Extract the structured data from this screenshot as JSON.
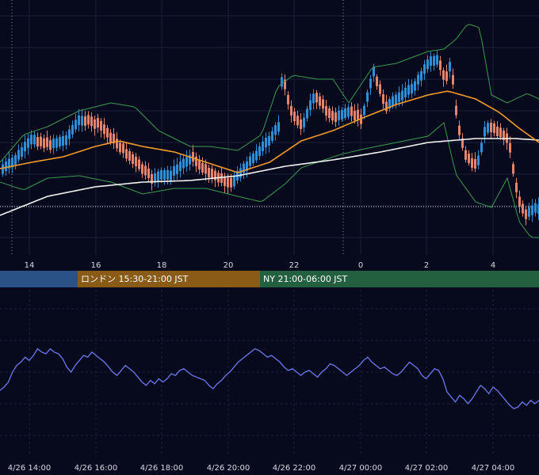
{
  "colors": {
    "background": "#070a1c",
    "grid": "#1a2036",
    "up_candle": "#2f8fd6",
    "down_candle": "#e8846b",
    "bollinger": "#3c9a52",
    "ma_short": "#f39a2b",
    "ma_long": "#f2f2f2",
    "oscillator": "#6b78f0",
    "axis_text": "#d7d9e3",
    "tokyo_session": "#2b5286",
    "london_session": "#8a5a17",
    "ny_session": "#22603f"
  },
  "sessions": [
    {
      "label": "",
      "color": "#2b5286"
    },
    {
      "label": "ロンドン 15:30-21:00 JST",
      "color": "#8a5a17"
    },
    {
      "label": "NY 21:00-06:00 JST",
      "color": "#22603f"
    }
  ],
  "chart_data": [
    {
      "type": "candlestick",
      "title": "",
      "x_ticks": [
        "14",
        "16",
        "18",
        "20",
        "22",
        "0",
        "2",
        "4"
      ],
      "overlays": [
        "bollinger-bands",
        "moving-average-short",
        "moving-average-long"
      ],
      "grid": true,
      "legend": "none"
    },
    {
      "type": "line",
      "title": "",
      "x_ticks": [
        "4/26 14:00",
        "4/26 16:00",
        "4/26 18:00",
        "4/26 20:00",
        "4/26 22:00",
        "4/27 00:00",
        "4/27 02:00",
        "4/27 04:00"
      ],
      "series": [
        {
          "name": "",
          "values": [
            49,
            51,
            54,
            60,
            64,
            66,
            69,
            67,
            70,
            74,
            72,
            71,
            74,
            72,
            71,
            68,
            63,
            60,
            64,
            67,
            70,
            69,
            72,
            70,
            68,
            66,
            63,
            60,
            58,
            61,
            64,
            62,
            60,
            57,
            54,
            52,
            55,
            53,
            56,
            54,
            56,
            59,
            58,
            61,
            62,
            60,
            58,
            57,
            56,
            55,
            52,
            50,
            53,
            55,
            58,
            60,
            63,
            66,
            68,
            70,
            72,
            74,
            73,
            71,
            69,
            70,
            68,
            66,
            63,
            61,
            62,
            60,
            58,
            60,
            61,
            59,
            57,
            60,
            62,
            65,
            64,
            62,
            60,
            58,
            60,
            62,
            64,
            67,
            69,
            66,
            64,
            62,
            63,
            61,
            59,
            58,
            60,
            63,
            66,
            64,
            62,
            58,
            56,
            59,
            62,
            61,
            56,
            48,
            45,
            42,
            46,
            44,
            41,
            44,
            48,
            52,
            50,
            47,
            51,
            49,
            46,
            43,
            40,
            38,
            39,
            42,
            40,
            43,
            41,
            43
          ]
        }
      ],
      "grid": true,
      "legend": "none"
    }
  ]
}
